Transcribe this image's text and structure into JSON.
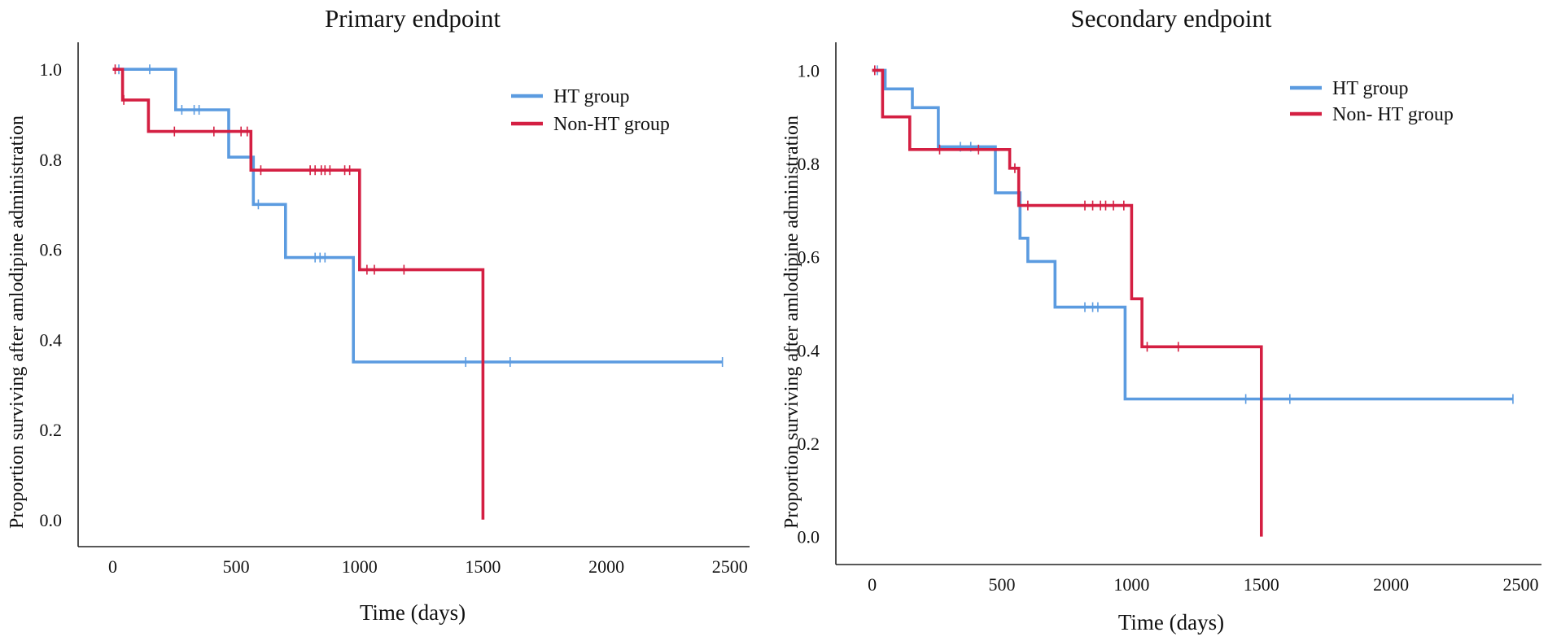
{
  "chart_data": [
    {
      "type": "line",
      "subtype": "kaplan-meier step",
      "title": "Primary endpoint",
      "xlabel": "Time (days)",
      "ylabel": "Proportion surviving after amlodipine administration",
      "xlim": [
        -140,
        2580
      ],
      "ylim": [
        -0.06,
        1.06
      ],
      "xticks": [
        "0",
        "500",
        "1000",
        "1500",
        "2000",
        "2500"
      ],
      "xtick_values": [
        0,
        500,
        1000,
        1500,
        2000,
        2500
      ],
      "yticks": [
        "0.0",
        "0.2",
        "0.4",
        "0.6",
        "0.8",
        "1.0"
      ],
      "ytick_values": [
        0.0,
        0.2,
        0.4,
        0.6,
        0.8,
        1.0
      ],
      "legend_position": "top-right",
      "grid": false,
      "series": [
        {
          "name": "HT group",
          "color": "#5b9be0",
          "steps": [
            [
              0,
              1.0
            ],
            [
              255,
              0.91
            ],
            [
              470,
              0.805
            ],
            [
              570,
              0.7
            ],
            [
              700,
              0.582
            ],
            [
              975,
              0.35
            ],
            [
              2470,
              0.35
            ]
          ],
          "censored": [
            [
              25,
              1.0
            ],
            [
              150,
              1.0
            ],
            [
              280,
              0.91
            ],
            [
              330,
              0.91
            ],
            [
              350,
              0.91
            ],
            [
              590,
              0.7
            ],
            [
              820,
              0.582
            ],
            [
              840,
              0.582
            ],
            [
              860,
              0.582
            ],
            [
              1430,
              0.35
            ],
            [
              1610,
              0.35
            ],
            [
              2470,
              0.35
            ]
          ]
        },
        {
          "name": "Non-HT group",
          "color": "#d41f42",
          "steps": [
            [
              0,
              1.0
            ],
            [
              40,
              0.932
            ],
            [
              145,
              0.862
            ],
            [
              560,
              0.776
            ],
            [
              1000,
              0.555
            ],
            [
              1500,
              0.0
            ]
          ],
          "censored": [
            [
              10,
              1.0
            ],
            [
              45,
              0.932
            ],
            [
              250,
              0.862
            ],
            [
              410,
              0.862
            ],
            [
              520,
              0.862
            ],
            [
              545,
              0.862
            ],
            [
              600,
              0.776
            ],
            [
              800,
              0.776
            ],
            [
              820,
              0.776
            ],
            [
              845,
              0.776
            ],
            [
              860,
              0.776
            ],
            [
              880,
              0.776
            ],
            [
              940,
              0.776
            ],
            [
              960,
              0.776
            ],
            [
              1030,
              0.555
            ],
            [
              1060,
              0.555
            ],
            [
              1180,
              0.555
            ]
          ]
        }
      ]
    },
    {
      "type": "line",
      "subtype": "kaplan-meier step",
      "title": "Secondary endpoint",
      "xlabel": "Time (days)",
      "ylabel": "Proportion surviving after amlodipine administration",
      "xlim": [
        -140,
        2580
      ],
      "ylim": [
        -0.06,
        1.06
      ],
      "xticks": [
        "0",
        "500",
        "1000",
        "1500",
        "2000",
        "2500"
      ],
      "xtick_values": [
        0,
        500,
        1000,
        1500,
        2000,
        2500
      ],
      "yticks": [
        "0.0",
        "0.2",
        "0.4",
        "0.6",
        "0.8",
        "1.0"
      ],
      "ytick_values": [
        0.0,
        0.2,
        0.4,
        0.6,
        0.8,
        1.0
      ],
      "legend_position": "top-right",
      "grid": false,
      "series": [
        {
          "name": "HT group",
          "color": "#5b9be0",
          "steps": [
            [
              0,
              1.0
            ],
            [
              50,
              0.96
            ],
            [
              155,
              0.92
            ],
            [
              255,
              0.836
            ],
            [
              475,
              0.737
            ],
            [
              570,
              0.64
            ],
            [
              600,
              0.59
            ],
            [
              705,
              0.492
            ],
            [
              975,
              0.295
            ],
            [
              2470,
              0.295
            ]
          ],
          "censored": [
            [
              20,
              1.0
            ],
            [
              340,
              0.836
            ],
            [
              380,
              0.836
            ],
            [
              820,
              0.492
            ],
            [
              850,
              0.492
            ],
            [
              870,
              0.492
            ],
            [
              1440,
              0.295
            ],
            [
              1610,
              0.295
            ],
            [
              2470,
              0.295
            ]
          ]
        },
        {
          "name": "Non- HT group",
          "color": "#d41f42",
          "steps": [
            [
              0,
              1.0
            ],
            [
              40,
              0.9
            ],
            [
              145,
              0.83
            ],
            [
              530,
              0.79
            ],
            [
              565,
              0.71
            ],
            [
              1000,
              0.51
            ],
            [
              1040,
              0.407
            ],
            [
              1500,
              0.0
            ]
          ],
          "censored": [
            [
              10,
              1.0
            ],
            [
              260,
              0.83
            ],
            [
              410,
              0.83
            ],
            [
              550,
              0.79
            ],
            [
              600,
              0.71
            ],
            [
              820,
              0.71
            ],
            [
              850,
              0.71
            ],
            [
              880,
              0.71
            ],
            [
              900,
              0.71
            ],
            [
              930,
              0.71
            ],
            [
              970,
              0.71
            ],
            [
              1060,
              0.407
            ],
            [
              1180,
              0.407
            ]
          ]
        }
      ]
    }
  ]
}
